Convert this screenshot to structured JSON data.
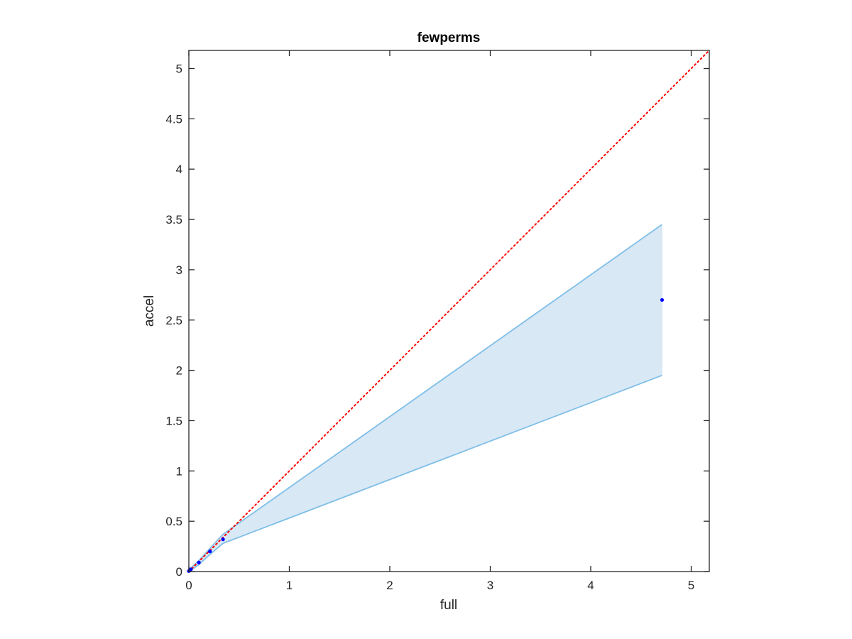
{
  "chart_data": {
    "type": "line",
    "title": "fewperms",
    "xlabel": "full",
    "ylabel": "accel",
    "xlim": [
      0,
      5.18
    ],
    "ylim": [
      0,
      5.18
    ],
    "xticks": [
      0,
      1,
      2,
      3,
      4,
      5
    ],
    "xtick_labels": [
      "0",
      "1",
      "2",
      "3",
      "4",
      "5"
    ],
    "yticks": [
      0,
      0.5,
      1,
      1.5,
      2,
      2.5,
      3,
      3.5,
      4,
      4.5,
      5
    ],
    "ytick_labels": [
      "0",
      "0.5",
      "1",
      "1.5",
      "2",
      "2.5",
      "3",
      "3.5",
      "4",
      "4.5",
      "5"
    ],
    "grid": false,
    "reference_line": {
      "style": "dotted",
      "color": "#ff0000",
      "points": [
        [
          0,
          0
        ],
        [
          5.18,
          5.18
        ]
      ]
    },
    "band": {
      "color": "#7fbfe8",
      "fill": "#d9e8f5",
      "x": [
        0.0,
        0.01,
        0.02,
        0.1,
        0.21,
        0.34,
        4.71
      ],
      "upper": [
        0.01,
        0.02,
        0.035,
        0.11,
        0.23,
        0.37,
        3.45
      ],
      "lower": [
        0.0,
        0.005,
        0.01,
        0.07,
        0.17,
        0.28,
        1.95
      ]
    },
    "points": {
      "color": "#0000ff",
      "x": [
        0.0,
        0.01,
        0.02,
        0.1,
        0.21,
        0.34,
        4.71
      ],
      "y": [
        0.005,
        0.012,
        0.022,
        0.09,
        0.2,
        0.32,
        2.7
      ]
    }
  }
}
